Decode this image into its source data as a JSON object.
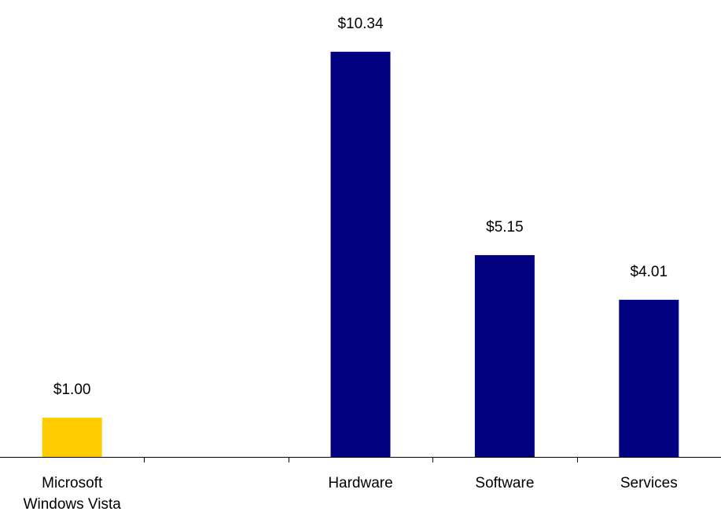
{
  "chart_data": {
    "type": "bar",
    "title": "",
    "xlabel": "",
    "ylabel": "",
    "categories": [
      [
        "Microsoft",
        "Windows Vista"
      ],
      [
        ""
      ],
      [
        "Hardware"
      ],
      [
        "Software"
      ],
      [
        "Services"
      ]
    ],
    "values": [
      1.0,
      null,
      10.34,
      5.15,
      4.01
    ],
    "value_labels": [
      "$1.00",
      "",
      "$10.34",
      "$5.15",
      "$4.01"
    ],
    "bar_colors": [
      "#ffcc00",
      "#000080",
      "#000080",
      "#000080",
      "#000080"
    ],
    "ylim": [
      0,
      11.5
    ],
    "grid": false,
    "legend": "none"
  }
}
